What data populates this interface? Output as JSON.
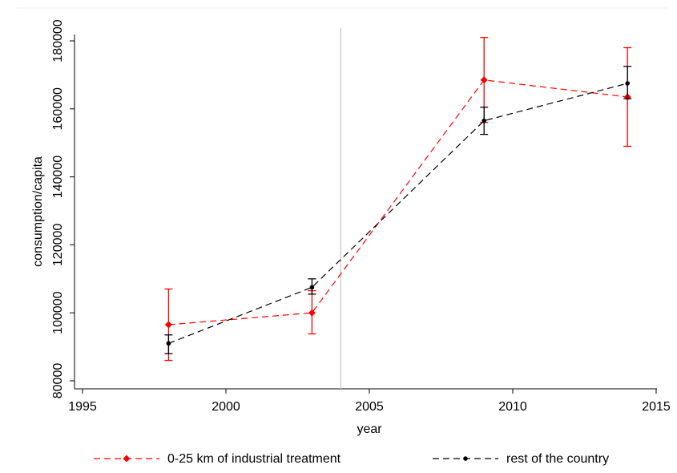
{
  "chart_data": {
    "type": "line",
    "xlabel": "year",
    "ylabel": "consumption/capita",
    "xlim": [
      1995,
      2015
    ],
    "ylim": [
      80000,
      180000
    ],
    "x_ticks": [
      1995,
      2000,
      2005,
      2010,
      2015
    ],
    "y_ticks": [
      80000,
      100000,
      120000,
      140000,
      160000,
      180000
    ],
    "x_tick_labels": [
      "1995",
      "2000",
      "2005",
      "2010",
      "2015"
    ],
    "y_tick_labels": [
      "80000",
      "100000",
      "120000",
      "140000",
      "160000",
      "180000"
    ],
    "reference_line_x": 2004,
    "grid": false,
    "legend_position": "bottom",
    "series": [
      {
        "name": "0-25 km of industrial treatment",
        "color": "#ff0000",
        "marker": "diamond",
        "line_style": "dashed",
        "x": [
          1998,
          2003,
          2009,
          2014
        ],
        "values": [
          96500,
          100000,
          168500,
          163500
        ],
        "ci_low": [
          86000,
          93800,
          156000,
          149000
        ],
        "ci_high": [
          107000,
          106500,
          181000,
          178000
        ]
      },
      {
        "name": "rest of the country",
        "color": "#000000",
        "marker": "dot",
        "line_style": "dashed",
        "x": [
          1998,
          2003,
          2009,
          2014
        ],
        "values": [
          91000,
          107500,
          156500,
          167500
        ],
        "ci_low": [
          88000,
          105500,
          152500,
          163000
        ],
        "ci_high": [
          93500,
          110000,
          160500,
          172500
        ]
      }
    ]
  }
}
